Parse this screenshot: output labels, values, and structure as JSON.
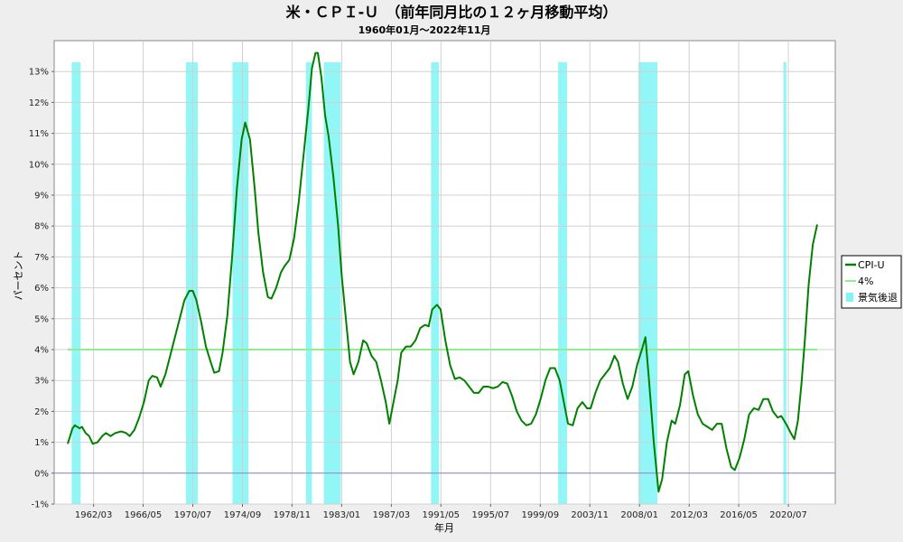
{
  "chart_data": {
    "type": "line",
    "title": "米・ＣＰＩ-Ｕ　（前年同月比の１２ヶ月移動平均）",
    "subtitle": "1960年01月～2022年11月",
    "xlabel": "年月",
    "ylabel": "パーセント",
    "ylim": [
      -1,
      14
    ],
    "xlim": [
      1960.0,
      2022.92
    ],
    "y_ticks": [
      {
        "value": -1,
        "label": "-1%"
      },
      {
        "value": 0,
        "label": "0%"
      },
      {
        "value": 1,
        "label": "1%"
      },
      {
        "value": 2,
        "label": "2%"
      },
      {
        "value": 3,
        "label": "3%"
      },
      {
        "value": 4,
        "label": "4%"
      },
      {
        "value": 5,
        "label": "5%"
      },
      {
        "value": 6,
        "label": "6%"
      },
      {
        "value": 7,
        "label": "7%"
      },
      {
        "value": 8,
        "label": "8%"
      },
      {
        "value": 9,
        "label": "9%"
      },
      {
        "value": 10,
        "label": "10%"
      },
      {
        "value": 11,
        "label": "11%"
      },
      {
        "value": 12,
        "label": "12%"
      },
      {
        "value": 13,
        "label": "13%"
      }
    ],
    "x_ticks": [
      {
        "value": 1962.17,
        "label": "1962/03"
      },
      {
        "value": 1966.33,
        "label": "1966/05"
      },
      {
        "value": 1970.5,
        "label": "1970/07"
      },
      {
        "value": 1974.67,
        "label": "1974/09"
      },
      {
        "value": 1978.83,
        "label": "1978/11"
      },
      {
        "value": 1983.0,
        "label": "1983/01"
      },
      {
        "value": 1987.17,
        "label": "1987/03"
      },
      {
        "value": 1991.33,
        "label": "1991/05"
      },
      {
        "value": 1995.5,
        "label": "1995/07"
      },
      {
        "value": 1999.67,
        "label": "1999/09"
      },
      {
        "value": 2003.83,
        "label": "2003/11"
      },
      {
        "value": 2008.0,
        "label": "2008/01"
      },
      {
        "value": 2012.17,
        "label": "2012/03"
      },
      {
        "value": 2016.33,
        "label": "2016/05"
      },
      {
        "value": 2020.5,
        "label": "2020/07"
      }
    ],
    "grid": true,
    "legend_position": "right",
    "series": [
      {
        "name": "CPI-U",
        "color": "#008000",
        "points": [
          [
            1960.0,
            0.95
          ],
          [
            1960.4,
            1.45
          ],
          [
            1960.6,
            1.55
          ],
          [
            1961.0,
            1.45
          ],
          [
            1961.2,
            1.5
          ],
          [
            1961.5,
            1.3
          ],
          [
            1961.8,
            1.2
          ],
          [
            1962.1,
            0.95
          ],
          [
            1962.5,
            1.0
          ],
          [
            1962.9,
            1.2
          ],
          [
            1963.2,
            1.3
          ],
          [
            1963.6,
            1.2
          ],
          [
            1964.0,
            1.3
          ],
          [
            1964.5,
            1.35
          ],
          [
            1964.9,
            1.3
          ],
          [
            1965.2,
            1.2
          ],
          [
            1965.6,
            1.4
          ],
          [
            1966.0,
            1.8
          ],
          [
            1966.4,
            2.3
          ],
          [
            1966.8,
            3.0
          ],
          [
            1967.1,
            3.15
          ],
          [
            1967.5,
            3.1
          ],
          [
            1967.8,
            2.8
          ],
          [
            1968.2,
            3.2
          ],
          [
            1968.6,
            3.8
          ],
          [
            1969.0,
            4.4
          ],
          [
            1969.4,
            5.0
          ],
          [
            1969.8,
            5.6
          ],
          [
            1970.2,
            5.9
          ],
          [
            1970.5,
            5.9
          ],
          [
            1970.8,
            5.6
          ],
          [
            1971.2,
            4.9
          ],
          [
            1971.6,
            4.1
          ],
          [
            1972.0,
            3.6
          ],
          [
            1972.3,
            3.25
          ],
          [
            1972.7,
            3.3
          ],
          [
            1973.0,
            3.9
          ],
          [
            1973.4,
            5.1
          ],
          [
            1973.8,
            7.0
          ],
          [
            1974.2,
            9.2
          ],
          [
            1974.6,
            10.8
          ],
          [
            1974.9,
            11.35
          ],
          [
            1975.3,
            10.8
          ],
          [
            1975.7,
            9.2
          ],
          [
            1976.0,
            7.8
          ],
          [
            1976.4,
            6.5
          ],
          [
            1976.8,
            5.7
          ],
          [
            1977.1,
            5.65
          ],
          [
            1977.5,
            6.0
          ],
          [
            1977.9,
            6.5
          ],
          [
            1978.2,
            6.7
          ],
          [
            1978.6,
            6.9
          ],
          [
            1979.0,
            7.6
          ],
          [
            1979.4,
            8.8
          ],
          [
            1979.8,
            10.3
          ],
          [
            1980.2,
            11.8
          ],
          [
            1980.5,
            13.1
          ],
          [
            1980.8,
            13.6
          ],
          [
            1981.0,
            13.6
          ],
          [
            1981.3,
            12.8
          ],
          [
            1981.6,
            11.6
          ],
          [
            1981.9,
            10.9
          ],
          [
            1982.3,
            9.6
          ],
          [
            1982.7,
            8.0
          ],
          [
            1983.0,
            6.4
          ],
          [
            1983.4,
            4.8
          ],
          [
            1983.7,
            3.6
          ],
          [
            1984.0,
            3.2
          ],
          [
            1984.4,
            3.6
          ],
          [
            1984.8,
            4.3
          ],
          [
            1985.1,
            4.2
          ],
          [
            1985.5,
            3.8
          ],
          [
            1985.9,
            3.6
          ],
          [
            1986.3,
            3.0
          ],
          [
            1986.7,
            2.3
          ],
          [
            1987.0,
            1.6
          ],
          [
            1987.3,
            2.2
          ],
          [
            1987.7,
            3.0
          ],
          [
            1988.0,
            3.9
          ],
          [
            1988.4,
            4.1
          ],
          [
            1988.8,
            4.1
          ],
          [
            1989.2,
            4.3
          ],
          [
            1989.6,
            4.7
          ],
          [
            1990.0,
            4.8
          ],
          [
            1990.3,
            4.75
          ],
          [
            1990.6,
            5.3
          ],
          [
            1991.0,
            5.45
          ],
          [
            1991.3,
            5.3
          ],
          [
            1991.7,
            4.3
          ],
          [
            1992.1,
            3.5
          ],
          [
            1992.5,
            3.05
          ],
          [
            1992.9,
            3.1
          ],
          [
            1993.3,
            3.0
          ],
          [
            1993.7,
            2.8
          ],
          [
            1994.1,
            2.6
          ],
          [
            1994.5,
            2.6
          ],
          [
            1994.9,
            2.8
          ],
          [
            1995.3,
            2.8
          ],
          [
            1995.7,
            2.75
          ],
          [
            1996.1,
            2.8
          ],
          [
            1996.5,
            2.95
          ],
          [
            1996.9,
            2.9
          ],
          [
            1997.3,
            2.5
          ],
          [
            1997.7,
            2.0
          ],
          [
            1998.1,
            1.7
          ],
          [
            1998.5,
            1.55
          ],
          [
            1998.9,
            1.6
          ],
          [
            1999.3,
            1.9
          ],
          [
            1999.7,
            2.4
          ],
          [
            2000.1,
            3.0
          ],
          [
            2000.5,
            3.4
          ],
          [
            2000.9,
            3.4
          ],
          [
            2001.3,
            3.0
          ],
          [
            2001.7,
            2.2
          ],
          [
            2002.0,
            1.6
          ],
          [
            2002.4,
            1.55
          ],
          [
            2002.8,
            2.1
          ],
          [
            2003.2,
            2.3
          ],
          [
            2003.6,
            2.1
          ],
          [
            2003.9,
            2.1
          ],
          [
            2004.3,
            2.6
          ],
          [
            2004.7,
            3.0
          ],
          [
            2005.1,
            3.2
          ],
          [
            2005.5,
            3.4
          ],
          [
            2005.9,
            3.8
          ],
          [
            2006.2,
            3.6
          ],
          [
            2006.6,
            2.9
          ],
          [
            2007.0,
            2.4
          ],
          [
            2007.4,
            2.8
          ],
          [
            2007.8,
            3.5
          ],
          [
            2008.2,
            4.0
          ],
          [
            2008.5,
            4.4
          ],
          [
            2008.8,
            3.0
          ],
          [
            2009.2,
            1.0
          ],
          [
            2009.6,
            -0.6
          ],
          [
            2009.9,
            -0.2
          ],
          [
            2010.3,
            1.0
          ],
          [
            2010.7,
            1.7
          ],
          [
            2011.0,
            1.6
          ],
          [
            2011.4,
            2.2
          ],
          [
            2011.8,
            3.2
          ],
          [
            2012.1,
            3.3
          ],
          [
            2012.5,
            2.5
          ],
          [
            2012.9,
            1.9
          ],
          [
            2013.3,
            1.6
          ],
          [
            2013.7,
            1.5
          ],
          [
            2014.1,
            1.4
          ],
          [
            2014.5,
            1.6
          ],
          [
            2014.9,
            1.6
          ],
          [
            2015.3,
            0.8
          ],
          [
            2015.7,
            0.2
          ],
          [
            2016.0,
            0.1
          ],
          [
            2016.4,
            0.5
          ],
          [
            2016.8,
            1.1
          ],
          [
            2017.2,
            1.9
          ],
          [
            2017.6,
            2.1
          ],
          [
            2018.0,
            2.05
          ],
          [
            2018.4,
            2.4
          ],
          [
            2018.8,
            2.4
          ],
          [
            2019.2,
            2.0
          ],
          [
            2019.6,
            1.8
          ],
          [
            2019.9,
            1.85
          ],
          [
            2020.3,
            1.6
          ],
          [
            2020.7,
            1.3
          ],
          [
            2021.0,
            1.1
          ],
          [
            2021.3,
            1.7
          ],
          [
            2021.6,
            2.9
          ],
          [
            2021.9,
            4.4
          ],
          [
            2022.2,
            6.1
          ],
          [
            2022.55,
            7.4
          ],
          [
            2022.92,
            8.05
          ]
        ]
      },
      {
        "name": "4%",
        "color": "#90ee90",
        "points": [
          [
            1960.0,
            4
          ],
          [
            2022.92,
            4
          ]
        ]
      }
    ],
    "baseline": {
      "value": 0,
      "color": "#8888cc"
    },
    "recessions": {
      "name": "景気後退",
      "color": "#7ff5f5",
      "periods": [
        [
          1960.33,
          1961.08
        ],
        [
          1969.92,
          1970.92
        ],
        [
          1973.83,
          1975.17
        ],
        [
          1980.0,
          1980.5
        ],
        [
          1981.5,
          1982.92
        ],
        [
          1990.5,
          1991.17
        ],
        [
          2001.17,
          2001.92
        ],
        [
          2007.92,
          2009.5
        ],
        [
          2020.08,
          2020.33
        ]
      ]
    }
  },
  "legend": {
    "items": [
      {
        "label": "CPI-U",
        "color": "#008000",
        "kind": "line-bold"
      },
      {
        "label": "4%",
        "color": "#90ee90",
        "kind": "line"
      },
      {
        "label": "景気後退",
        "color": "#7ff5f5",
        "kind": "box"
      }
    ]
  }
}
